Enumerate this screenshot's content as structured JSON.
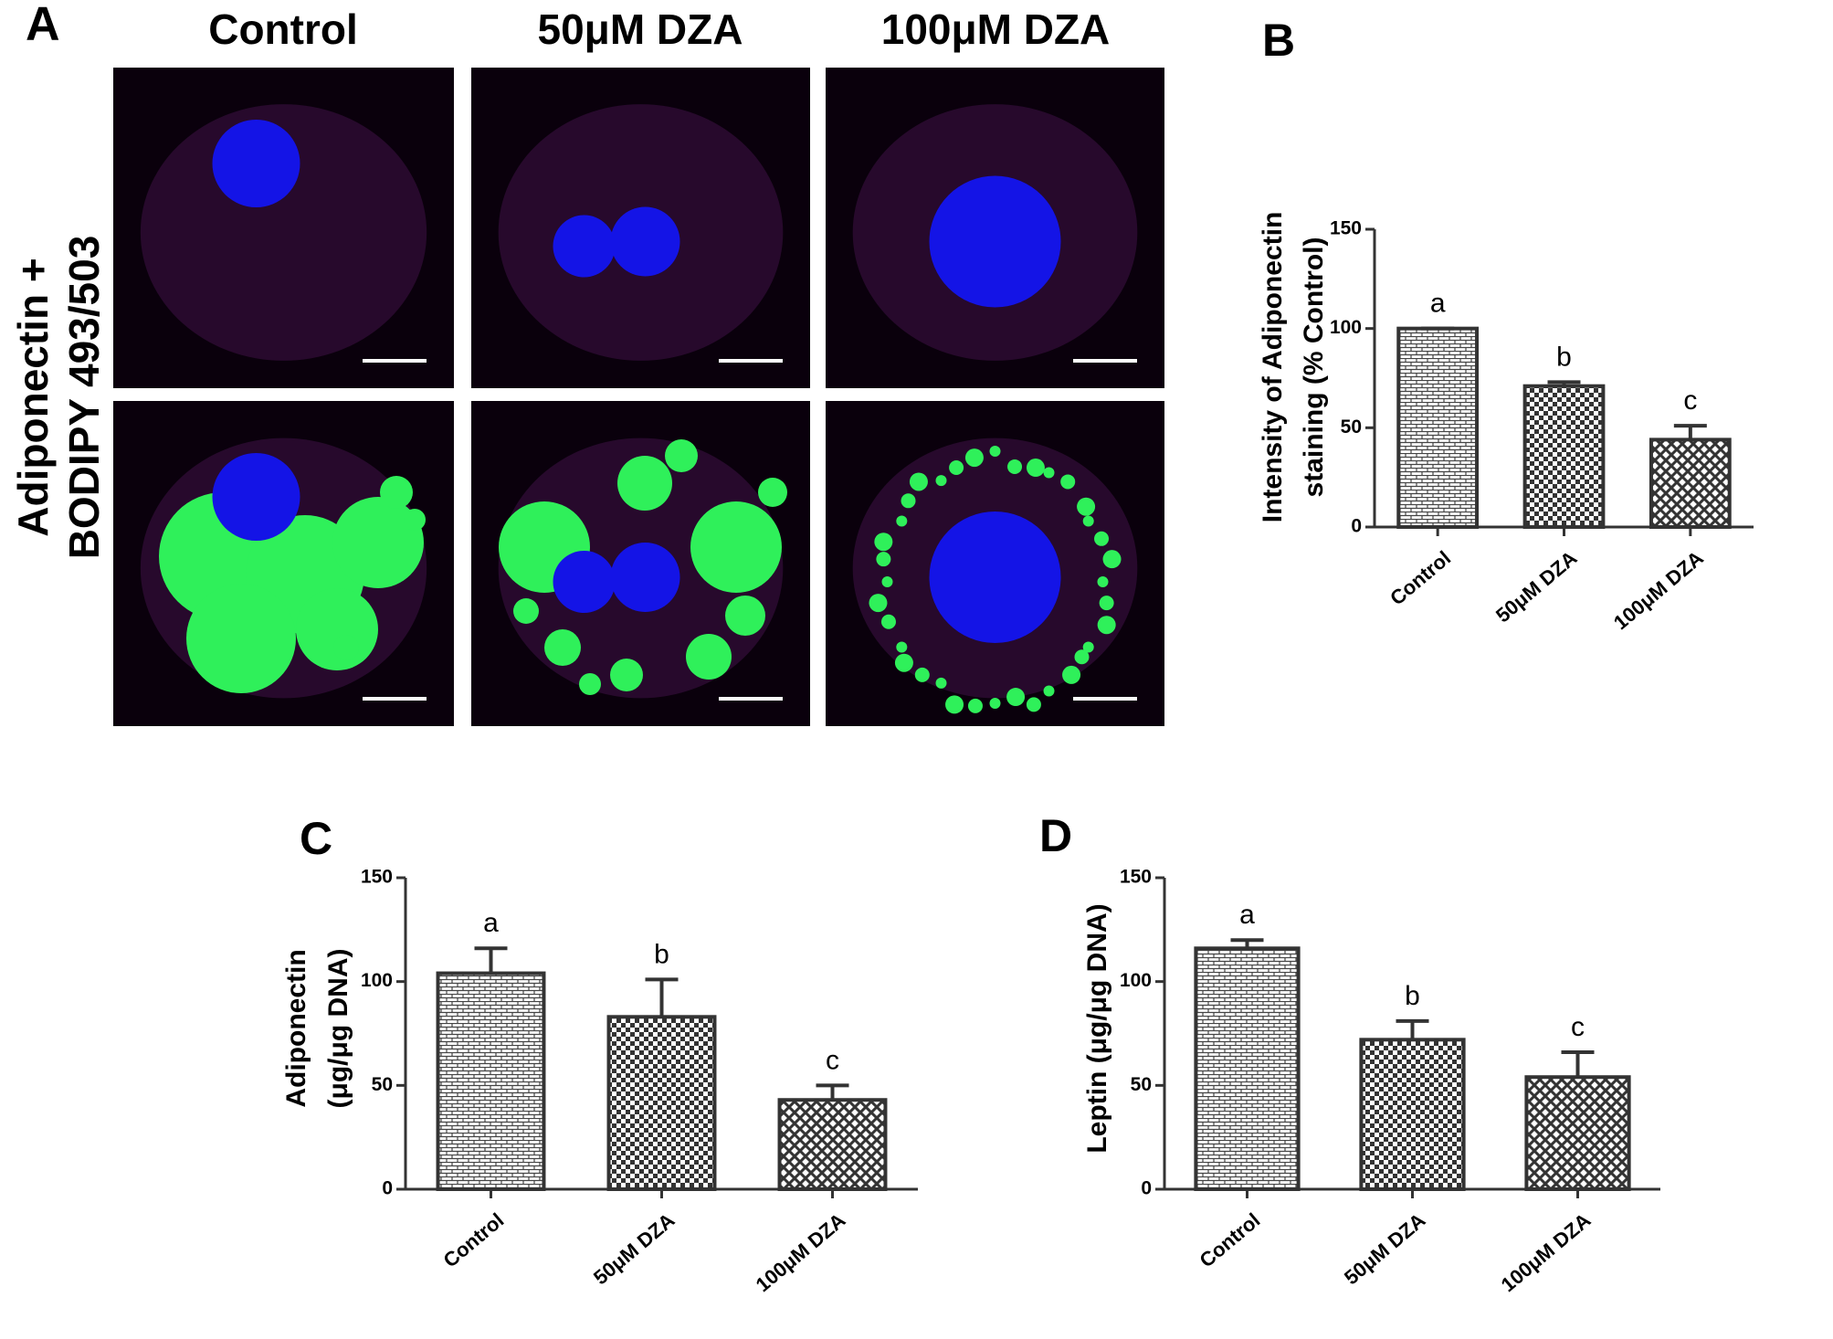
{
  "panel_a": {
    "label": "A",
    "columns": [
      "Control",
      "50μM DZA",
      "100μM DZA"
    ],
    "row_label": [
      "Adiponectin +",
      "BODIPY 493/503"
    ]
  },
  "chart_data": [
    {
      "type": "bar",
      "label": "B",
      "ylabel": [
        "Intensity of Adiponectin",
        "staining (% Control)"
      ],
      "categories": [
        "Control",
        "50μM DZA",
        "100μM DZA"
      ],
      "values": [
        100,
        71,
        44
      ],
      "errors": [
        0,
        2,
        7
      ],
      "annotations": [
        "a",
        "b",
        "c"
      ],
      "color": "#333333",
      "ylim": [
        0,
        150
      ],
      "yticks": [
        0,
        50,
        100,
        150
      ]
    },
    {
      "type": "bar",
      "label": "C",
      "ylabel": [
        "Adiponectin",
        "(μg/μg DNA)"
      ],
      "categories": [
        "Control",
        "50μM DZA",
        "100μM DZA"
      ],
      "values": [
        104,
        83,
        43
      ],
      "errors": [
        12,
        18,
        7
      ],
      "annotations": [
        "a",
        "b",
        "c"
      ],
      "color": "#333333",
      "ylim": [
        0,
        150
      ],
      "yticks": [
        0,
        50,
        100,
        150
      ]
    },
    {
      "type": "bar",
      "label": "D",
      "ylabel": [
        "Leptin (μg/μg DNA)"
      ],
      "categories": [
        "Control",
        "50μM DZA",
        "100μM DZA"
      ],
      "values": [
        116,
        72,
        54
      ],
      "errors": [
        4,
        9,
        12
      ],
      "annotations": [
        "a",
        "b",
        "c"
      ],
      "color": "#333333",
      "ylim": [
        0,
        150
      ],
      "yticks": [
        0,
        50,
        100,
        150
      ]
    }
  ]
}
